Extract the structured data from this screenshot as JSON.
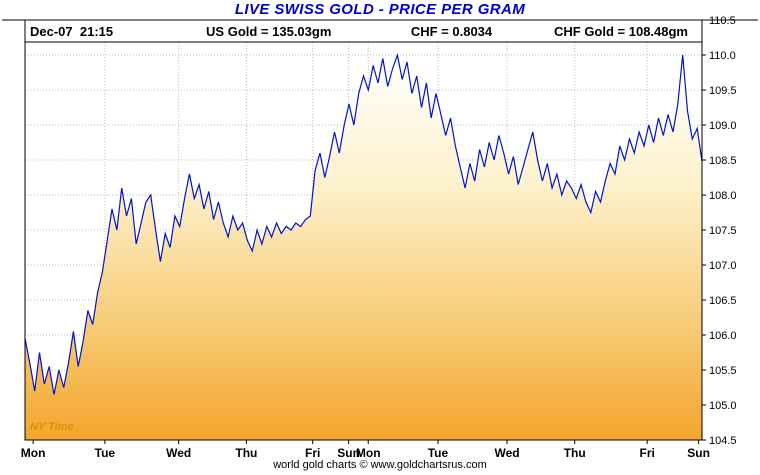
{
  "title": "LIVE SWISS GOLD - PRICE PER GRAM",
  "header": {
    "datetime": "Dec-07  21:15",
    "us_gold": "US Gold = 135.03gm",
    "chf_rate": "CHF = 0.8034",
    "chf_gold": "CHF Gold = 108.48gm"
  },
  "ny_time_label": "NY Time",
  "footer": {
    "credit": "world gold charts © www.goldchartsrus.com"
  },
  "chart_data": {
    "type": "area",
    "title": "LIVE SWISS GOLD - PRICE PER GRAM",
    "xlabel": "",
    "ylabel": "",
    "ylim": [
      104.5,
      110.5
    ],
    "grid": true,
    "legend": null,
    "y_ticks": [
      110.5,
      110.0,
      109.5,
      109.0,
      108.5,
      108.0,
      107.5,
      107.0,
      106.5,
      106.0,
      105.5,
      105.0,
      104.5
    ],
    "x_day_labels": [
      {
        "label": "Mon",
        "pos": 0.012
      },
      {
        "label": "Tue",
        "pos": 0.118
      },
      {
        "label": "Wed",
        "pos": 0.227
      },
      {
        "label": "Thu",
        "pos": 0.327
      },
      {
        "label": "Fri",
        "pos": 0.425
      },
      {
        "label": "Sun",
        "pos": 0.478
      },
      {
        "label": "Mon",
        "pos": 0.507
      },
      {
        "label": "Tue",
        "pos": 0.61
      },
      {
        "label": "Wed",
        "pos": 0.712
      },
      {
        "label": "Thu",
        "pos": 0.812
      },
      {
        "label": "Fri",
        "pos": 0.919
      },
      {
        "label": "Sun",
        "pos": 0.995
      }
    ],
    "values": [
      105.95,
      105.6,
      105.2,
      105.75,
      105.3,
      105.55,
      105.15,
      105.5,
      105.25,
      105.6,
      106.05,
      105.55,
      105.9,
      106.35,
      106.15,
      106.6,
      106.9,
      107.35,
      107.8,
      107.5,
      108.1,
      107.7,
      107.95,
      107.3,
      107.6,
      107.9,
      108.0,
      107.5,
      107.05,
      107.45,
      107.25,
      107.7,
      107.55,
      107.95,
      108.3,
      107.95,
      108.15,
      107.8,
      108.05,
      107.65,
      107.9,
      107.6,
      107.4,
      107.7,
      107.5,
      107.6,
      107.35,
      107.2,
      107.5,
      107.3,
      107.55,
      107.4,
      107.6,
      107.45,
      107.55,
      107.5,
      107.6,
      107.55,
      107.65,
      107.7,
      108.35,
      108.6,
      108.25,
      108.55,
      108.9,
      108.6,
      109.0,
      109.3,
      109.0,
      109.45,
      109.7,
      109.5,
      109.85,
      109.6,
      109.95,
      109.55,
      109.8,
      110.0,
      109.65,
      109.9,
      109.45,
      109.7,
      109.25,
      109.6,
      109.1,
      109.45,
      109.15,
      108.85,
      109.1,
      108.7,
      108.4,
      108.1,
      108.45,
      108.2,
      108.65,
      108.4,
      108.75,
      108.5,
      108.85,
      108.6,
      108.3,
      108.55,
      108.15,
      108.4,
      108.65,
      108.9,
      108.5,
      108.2,
      108.45,
      108.1,
      108.3,
      108.0,
      108.2,
      108.1,
      107.95,
      108.15,
      107.9,
      107.75,
      108.05,
      107.9,
      108.2,
      108.45,
      108.3,
      108.7,
      108.5,
      108.8,
      108.6,
      108.9,
      108.7,
      109.0,
      108.75,
      109.1,
      108.85,
      109.15,
      108.9,
      109.3,
      110.0,
      109.2,
      108.8,
      108.95,
      108.48
    ],
    "colors": {
      "line": "#0014cc",
      "grid": "#b8b8b8",
      "title": "#0000cc",
      "ny_time": "#db9200",
      "fill_stops": [
        "#ffffff",
        "#fdf1cd",
        "#f8cf7e",
        "#f3a52d"
      ]
    },
    "plot": {
      "l": 25,
      "t": 20,
      "r": 702,
      "b": 440
    },
    "header_line_y": 42
  }
}
